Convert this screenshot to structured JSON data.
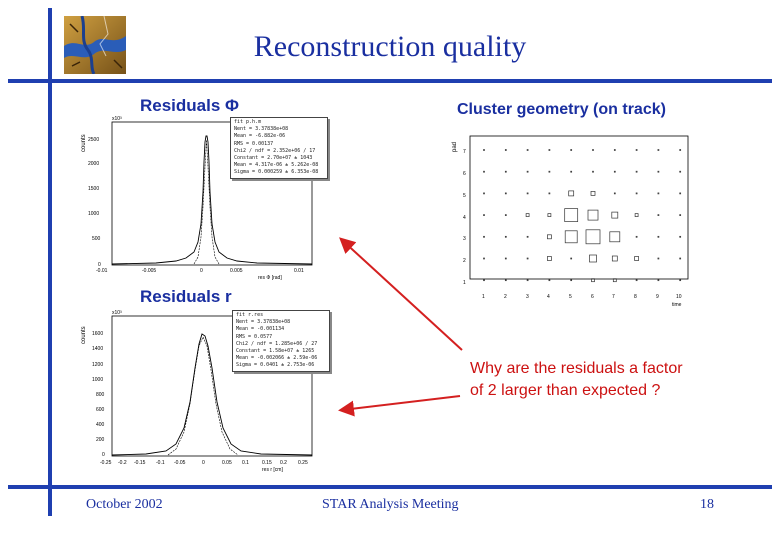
{
  "slide": {
    "title": "Reconstruction quality",
    "label_residuals_phi": "Residuals Φ",
    "label_residuals_r": "Residuals r",
    "label_cluster_geometry": "Cluster geometry (on track)",
    "question_line1": "Why are the residuals a factor",
    "question_line2": "of 2 larger than expected ?",
    "footer_date": "October 2002",
    "footer_meeting": "STAR Analysis Meeting",
    "footer_page": "18",
    "colors": {
      "accent_blue": "#1a2fa0",
      "bar_blue": "#1f3fb0",
      "question_red": "#cc1111",
      "arrow_red": "#d42020"
    },
    "logo_icon": "star-logo-icon"
  },
  "plot_phi": {
    "ylabel": "counts",
    "exponent": "x10³",
    "xlabel": "res Φ [rad]",
    "yticks": [
      "2500",
      "2000",
      "1500",
      "1000",
      "500",
      "0"
    ],
    "xticks": [
      "-0.01",
      "-0.005",
      "0",
      "0.005",
      "0.01"
    ],
    "stats": [
      "fit p.h.m",
      "Nent = 3.37838e+08",
      "Mean = -6.882e-06",
      "RMS = 0.00137",
      "Chi2 / ndf = 2.352e+06 / 17",
      "Constant = 2.70e+07 ± 1043",
      "Mean = 4.317e-06 ± 5.262e-08",
      "Sigma = 0.000259 ± 6.353e-08"
    ]
  },
  "plot_r": {
    "ylabel": "counts",
    "exponent": "x10³",
    "xlabel": "res r [cm]",
    "yticks": [
      "1600",
      "1400",
      "1200",
      "1000",
      "800",
      "600",
      "400",
      "200",
      "0"
    ],
    "xticks": [
      "-0.25",
      "-0.2",
      "-0.15",
      "-0.1",
      "-0.05",
      "0",
      "0.05",
      "0.1",
      "0.15",
      "0.2",
      "0.25"
    ],
    "stats": [
      "fit r.res",
      "Nent = 3.37838e+08",
      "Mean = -0.001134",
      "RMS = 0.0577",
      "Chi2 / ndf = 1.285e+06 / 27",
      "Constant = 1.58e+07 ± 1265",
      "Mean = -0.002066 ± 2.59e-06",
      "Sigma = 0.0401 ± 2.753e-06"
    ]
  },
  "plot_geometry": {
    "ylabel": "pad",
    "xlabel": "time",
    "yticks": [
      "7",
      "6",
      "5",
      "4",
      "3",
      "2",
      "1"
    ],
    "xticks": [
      "1",
      "2",
      "3",
      "4",
      "5",
      "6",
      "7",
      "8",
      "9",
      "10"
    ]
  }
}
